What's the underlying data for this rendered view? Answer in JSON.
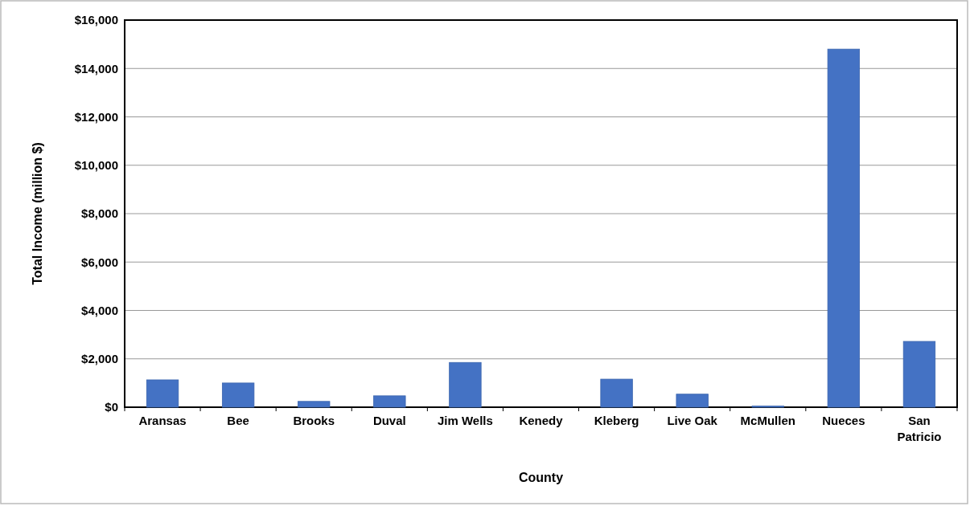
{
  "chart_data": {
    "type": "bar",
    "xlabel": "County",
    "ylabel": "Total Income (million $)",
    "categories": [
      "Aransas",
      "Bee",
      "Brooks",
      "Duval",
      "Jim Wells",
      "Kenedy",
      "Kleberg",
      "Live Oak",
      "McMullen",
      "Nueces",
      "San Patricio"
    ],
    "values": [
      1130,
      1000,
      240,
      470,
      1850,
      null,
      1160,
      540,
      50,
      14800,
      2720
    ],
    "color": "#4472c4",
    "ylim": [
      0,
      16000
    ],
    "yticks": [
      {
        "value": 0,
        "label": "$0"
      },
      {
        "value": 2000,
        "label": "$2,000"
      },
      {
        "value": 4000,
        "label": "$4,000"
      },
      {
        "value": 6000,
        "label": "$6,000"
      },
      {
        "value": 8000,
        "label": "$8,000"
      },
      {
        "value": 10000,
        "label": "$10,000"
      },
      {
        "value": 12000,
        "label": "$12,000"
      },
      {
        "value": 14000,
        "label": "$14,000"
      },
      {
        "value": 16000,
        "label": "$16,000"
      }
    ],
    "grid": "y"
  }
}
